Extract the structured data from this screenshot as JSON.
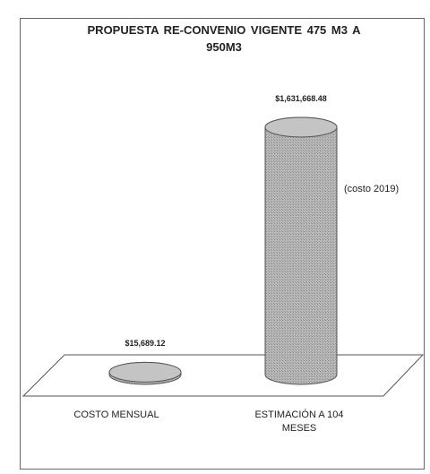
{
  "chart_data": {
    "type": "bar",
    "style": "cylinder",
    "title": "PROPUESTA RE-CONVENIO VIGENTE 475 M3 A 950M3",
    "categories": [
      "COSTO MENSUAL",
      "ESTIMACIÓN A 104 MESES"
    ],
    "values": [
      15689.12,
      1631668.48
    ],
    "value_labels": [
      "$15,689.12",
      "$1,631,668.48"
    ],
    "annotation": "(costo 2019)",
    "color": "#a8a8a8"
  }
}
